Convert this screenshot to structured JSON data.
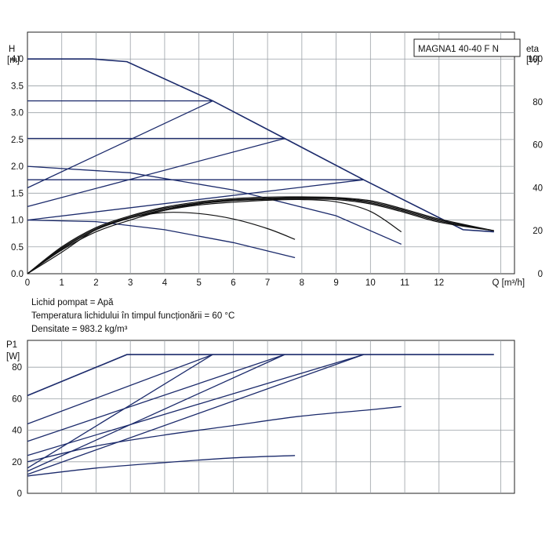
{
  "model_label": "MAGNA1 40-40 F N",
  "fluid_info": [
    "Lichid pompat = Apă",
    "Temperatura lichidului în timpul funcționării = 60 °C",
    "Densitate = 983.2 kg/m³"
  ],
  "colors": {
    "curve": "#1b2a6b",
    "eta": "#111111",
    "grid": "#9aa0a6"
  },
  "chart_data": [
    {
      "type": "line",
      "name": "qh",
      "ylabel": [
        "H",
        "[m]"
      ],
      "y2label": [
        "eta",
        "[%]"
      ],
      "xlabel": "Q [m³/h]",
      "xlim": [
        0,
        14.2
      ],
      "ylim": [
        0,
        4.5
      ],
      "y2lim": [
        0,
        112.5
      ],
      "grid": true,
      "x_ticks": [
        "0",
        "1",
        "2",
        "3",
        "4",
        "5",
        "6",
        "7",
        "8",
        "9",
        "10",
        "11",
        "12"
      ],
      "x_tick_values": [
        0,
        1,
        2,
        3,
        4,
        5,
        6,
        7,
        8,
        9,
        10,
        11,
        12
      ],
      "x_end_label": "Q [m³/h]",
      "x_end_value": 13.8,
      "y_ticks": [
        "0.0",
        "0.5",
        "1.0",
        "1.5",
        "2.0",
        "2.5",
        "3.0",
        "3.5",
        "4.0"
      ],
      "y_tick_values": [
        0,
        0.5,
        1,
        1.5,
        2,
        2.5,
        3,
        3.5,
        4
      ],
      "y2_ticks": [
        "0",
        "20",
        "40",
        "60",
        "80",
        "100"
      ],
      "y2_tick_values": [
        0,
        20,
        40,
        60,
        80,
        100
      ],
      "series": [
        {
          "role": "max-curve",
          "points": [
            [
              0,
              4.0
            ],
            [
              1.9,
              4.0
            ],
            [
              2.9,
              3.95
            ],
            [
              5.4,
              3.22
            ],
            [
              7.5,
              2.52
            ],
            [
              9.8,
              1.75
            ],
            [
              12.7,
              0.82
            ],
            [
              13.6,
              0.78
            ]
          ]
        },
        {
          "role": "const-pressure",
          "points": [
            [
              0,
              3.22
            ],
            [
              5.4,
              3.22
            ]
          ]
        },
        {
          "role": "const-pressure",
          "points": [
            [
              0,
              2.52
            ],
            [
              7.5,
              2.52
            ]
          ]
        },
        {
          "role": "const-pressure",
          "points": [
            [
              0,
              1.75
            ],
            [
              9.8,
              1.75
            ]
          ]
        },
        {
          "role": "prop-pressure",
          "points": [
            [
              0,
              1.6
            ],
            [
              5.4,
              3.22
            ]
          ]
        },
        {
          "role": "prop-pressure",
          "points": [
            [
              0,
              1.25
            ],
            [
              7.5,
              2.52
            ]
          ]
        },
        {
          "role": "prop-pressure",
          "points": [
            [
              0,
              1.0
            ],
            [
              9.8,
              1.75
            ]
          ]
        },
        {
          "role": "curve",
          "points": [
            [
              0,
              2.0
            ],
            [
              3,
              1.88
            ],
            [
              6,
              1.56
            ],
            [
              9,
              1.08
            ],
            [
              10.9,
              0.55
            ]
          ]
        },
        {
          "role": "curve",
          "points": [
            [
              0,
              1.0
            ],
            [
              2,
              0.97
            ],
            [
              4,
              0.82
            ],
            [
              6,
              0.58
            ],
            [
              7.8,
              0.3
            ]
          ]
        }
      ],
      "eta_series": [
        {
          "points": [
            [
              0,
              0
            ],
            [
              1,
              10
            ],
            [
              2,
              20.5
            ],
            [
              3,
              26
            ],
            [
              4,
              28.5
            ],
            [
              5,
              28
            ],
            [
              6,
              25.5
            ],
            [
              7,
              21
            ],
            [
              7.8,
              16
            ]
          ]
        },
        {
          "points": [
            [
              0,
              0
            ],
            [
              1,
              11.5
            ],
            [
              2,
              20.5
            ],
            [
              3,
              26
            ],
            [
              4,
              29.5
            ],
            [
              5,
              32
            ],
            [
              6,
              33.3
            ],
            [
              7,
              34.2
            ],
            [
              8,
              34.5
            ],
            [
              9,
              33.5
            ],
            [
              10,
              29
            ],
            [
              10.9,
              19.5
            ]
          ]
        },
        {
          "points": [
            [
              0,
              0
            ],
            [
              1,
              11
            ],
            [
              2,
              19.5
            ],
            [
              3,
              25
            ],
            [
              4,
              29.5
            ],
            [
              5,
              32.5
            ],
            [
              6,
              34
            ],
            [
              7,
              34.6
            ],
            [
              8,
              34.8
            ],
            [
              9,
              34.5
            ],
            [
              10,
              32.5
            ],
            [
              11,
              28.5
            ],
            [
              12,
              24
            ],
            [
              13.6,
              20
            ]
          ]
        },
        {
          "points": [
            [
              0,
              0
            ],
            [
              1,
              11.5
            ],
            [
              2,
              20.5
            ],
            [
              3,
              26
            ],
            [
              4,
              30
            ],
            [
              5,
              32.8
            ],
            [
              6,
              34.2
            ],
            [
              7,
              35
            ],
            [
              8,
              35.2
            ],
            [
              9,
              35
            ],
            [
              10,
              33
            ],
            [
              11,
              29
            ],
            [
              12,
              24.5
            ],
            [
              13.6,
              20
            ]
          ]
        },
        {
          "points": [
            [
              0,
              0
            ],
            [
              1,
              12
            ],
            [
              2,
              21
            ],
            [
              3,
              26.5
            ],
            [
              4,
              30.5
            ],
            [
              5,
              33
            ],
            [
              6,
              34.5
            ],
            [
              7,
              35.2
            ],
            [
              8,
              35.5
            ],
            [
              9,
              35.2
            ],
            [
              10,
              33.5
            ],
            [
              11,
              29.5
            ],
            [
              12,
              25
            ],
            [
              13.6,
              20
            ]
          ]
        },
        {
          "points": [
            [
              0,
              0
            ],
            [
              1,
              12.5
            ],
            [
              2,
              21.5
            ],
            [
              3,
              27
            ],
            [
              4,
              31
            ],
            [
              5,
              33.5
            ],
            [
              6,
              35
            ],
            [
              7,
              35.7
            ],
            [
              8,
              35.8
            ],
            [
              9,
              35.5
            ],
            [
              10,
              34
            ],
            [
              11,
              30
            ],
            [
              12,
              25.5
            ],
            [
              13.6,
              20
            ]
          ]
        }
      ]
    },
    {
      "type": "line",
      "name": "p1",
      "ylabel": [
        "P1",
        "[W]"
      ],
      "xlim": [
        0,
        14.2
      ],
      "ylim": [
        0,
        97
      ],
      "grid": true,
      "y_ticks": [
        "0",
        "20",
        "40",
        "60",
        "80"
      ],
      "y_tick_values": [
        0,
        20,
        40,
        60,
        80
      ],
      "series": [
        {
          "role": "max",
          "points": [
            [
              0,
              62
            ],
            [
              2.9,
              88
            ],
            [
              13.6,
              88
            ]
          ]
        },
        {
          "role": "const-pressure",
          "points": [
            [
              0,
              16
            ],
            [
              5.4,
              88
            ]
          ]
        },
        {
          "role": "const-pressure",
          "points": [
            [
              0,
              14
            ],
            [
              7.5,
              88
            ]
          ]
        },
        {
          "role": "const-pressure",
          "points": [
            [
              0,
              12
            ],
            [
              9.8,
              88
            ]
          ]
        },
        {
          "role": "prop-pressure",
          "points": [
            [
              0,
              44
            ],
            [
              5.4,
              88
            ]
          ]
        },
        {
          "role": "prop-pressure",
          "points": [
            [
              0,
              33
            ],
            [
              7.5,
              88
            ]
          ]
        },
        {
          "role": "prop-pressure",
          "points": [
            [
              0,
              24
            ],
            [
              9.8,
              88
            ]
          ]
        },
        {
          "role": "curve",
          "points": [
            [
              0,
              20
            ],
            [
              2,
              30
            ],
            [
              4,
              37
            ],
            [
              6,
              43
            ],
            [
              8,
              49
            ],
            [
              10,
              53
            ],
            [
              10.9,
              55
            ]
          ]
        },
        {
          "role": "curve",
          "points": [
            [
              0,
              11
            ],
            [
              2,
              16
            ],
            [
              4,
              19.5
            ],
            [
              6,
              22.5
            ],
            [
              7.8,
              24
            ]
          ]
        }
      ]
    }
  ]
}
